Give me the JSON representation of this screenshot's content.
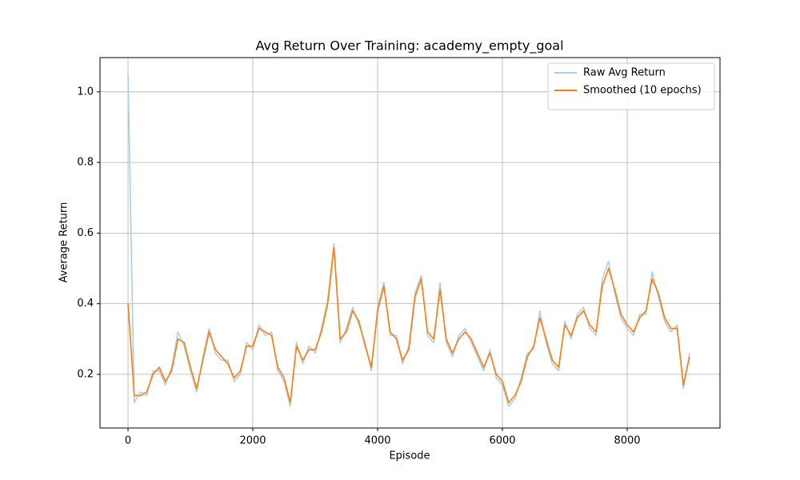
{
  "chart_data": {
    "type": "line",
    "title": "Avg Return Over Training: academy_empty_goal",
    "x_label": "Episode",
    "y_label": "Average Return",
    "x": [
      0,
      100,
      200,
      300,
      400,
      500,
      600,
      700,
      800,
      900,
      1000,
      1100,
      1200,
      1300,
      1400,
      1500,
      1600,
      1700,
      1800,
      1900,
      2000,
      2100,
      2200,
      2300,
      2400,
      2500,
      2600,
      2700,
      2800,
      2900,
      3000,
      3100,
      3200,
      3300,
      3400,
      3500,
      3600,
      3700,
      3800,
      3900,
      4000,
      4100,
      4200,
      4300,
      4400,
      4500,
      4600,
      4700,
      4800,
      4900,
      5000,
      5100,
      5200,
      5300,
      5400,
      5500,
      5600,
      5700,
      5800,
      5900,
      6000,
      6100,
      6200,
      6300,
      6400,
      6500,
      6600,
      6700,
      6800,
      6900,
      7000,
      7100,
      7200,
      7300,
      7400,
      7500,
      7600,
      7700,
      7800,
      7900,
      8000,
      8100,
      8200,
      8300,
      8400,
      8500,
      8600,
      8700,
      8800,
      8900,
      9000
    ],
    "series": [
      {
        "name": "Raw Avg Return",
        "color": "#aecde6",
        "values": [
          1.05,
          0.12,
          0.15,
          0.14,
          0.21,
          0.21,
          0.17,
          0.22,
          0.32,
          0.28,
          0.21,
          0.15,
          0.25,
          0.33,
          0.26,
          0.24,
          0.24,
          0.18,
          0.2,
          0.29,
          0.27,
          0.34,
          0.31,
          0.32,
          0.21,
          0.18,
          0.11,
          0.29,
          0.23,
          0.28,
          0.26,
          0.33,
          0.41,
          0.57,
          0.29,
          0.33,
          0.39,
          0.34,
          0.29,
          0.21,
          0.39,
          0.46,
          0.31,
          0.31,
          0.23,
          0.28,
          0.43,
          0.48,
          0.31,
          0.29,
          0.46,
          0.29,
          0.25,
          0.31,
          0.33,
          0.29,
          0.25,
          0.21,
          0.27,
          0.19,
          0.17,
          0.11,
          0.13,
          0.19,
          0.26,
          0.27,
          0.38,
          0.29,
          0.23,
          0.21,
          0.35,
          0.3,
          0.37,
          0.39,
          0.33,
          0.31,
          0.47,
          0.52,
          0.43,
          0.36,
          0.33,
          0.31,
          0.37,
          0.37,
          0.49,
          0.42,
          0.35,
          0.32,
          0.34,
          0.16,
          0.26
        ]
      },
      {
        "name": "Smoothed (10 epochs)",
        "color": "#ff7f0e",
        "values": [
          0.4,
          0.14,
          0.14,
          0.15,
          0.2,
          0.22,
          0.18,
          0.21,
          0.3,
          0.29,
          0.22,
          0.16,
          0.24,
          0.32,
          0.27,
          0.25,
          0.23,
          0.19,
          0.21,
          0.28,
          0.28,
          0.33,
          0.32,
          0.31,
          0.22,
          0.19,
          0.12,
          0.28,
          0.24,
          0.27,
          0.27,
          0.32,
          0.4,
          0.56,
          0.3,
          0.32,
          0.38,
          0.35,
          0.28,
          0.22,
          0.38,
          0.45,
          0.32,
          0.3,
          0.24,
          0.27,
          0.42,
          0.47,
          0.32,
          0.3,
          0.44,
          0.3,
          0.26,
          0.3,
          0.32,
          0.3,
          0.26,
          0.22,
          0.26,
          0.2,
          0.18,
          0.12,
          0.14,
          0.18,
          0.25,
          0.28,
          0.36,
          0.3,
          0.24,
          0.22,
          0.34,
          0.31,
          0.36,
          0.38,
          0.34,
          0.32,
          0.45,
          0.5,
          0.44,
          0.37,
          0.34,
          0.32,
          0.36,
          0.38,
          0.47,
          0.43,
          0.36,
          0.33,
          0.33,
          0.17,
          0.25
        ]
      }
    ],
    "xlim": [
      -449,
      9487
    ],
    "ylim": [
      0.048,
      1.097
    ],
    "xticks": [
      0,
      2000,
      4000,
      6000,
      8000
    ],
    "yticks": [
      0.2,
      0.4,
      0.6,
      0.8,
      {
        "value": 1,
        "label": "1.0"
      }
    ],
    "grid": true,
    "legend": "upper-right"
  }
}
